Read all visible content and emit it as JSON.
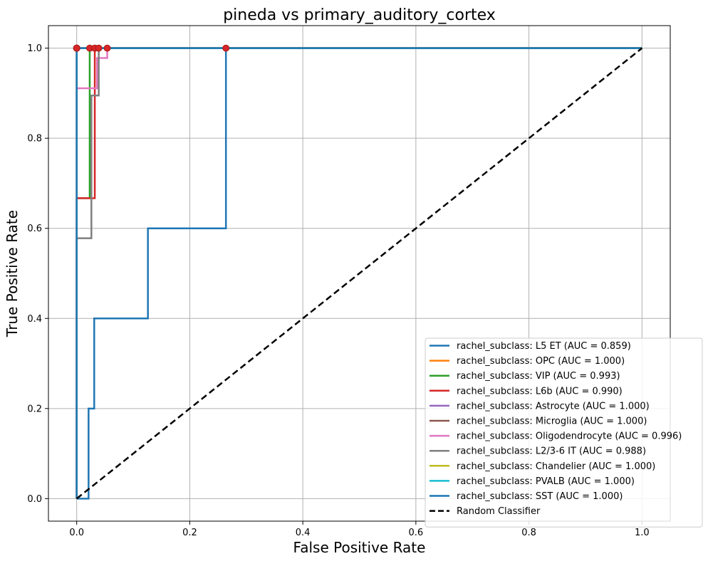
{
  "chart_data": {
    "type": "line",
    "title": "pineda vs primary_auditory_cortex",
    "xlabel": "False Positive Rate",
    "ylabel": "True Positive Rate",
    "xlim": [
      -0.05,
      1.05
    ],
    "ylim": [
      -0.05,
      1.05
    ],
    "xticks": [
      "0.0",
      "0.2",
      "0.4",
      "0.6",
      "0.8",
      "1.0"
    ],
    "yticks": [
      "0.0",
      "0.2",
      "0.4",
      "0.6",
      "0.8",
      "1.0"
    ],
    "grid": true,
    "legend_position": "lower-right",
    "series": [
      {
        "name": "rachel_subclass: L5 ET (AUC = 0.859)",
        "color": "#1f77b4",
        "x": [
          0,
          0.021,
          0.021,
          0.031,
          0.031,
          0.126,
          0.126,
          0.264,
          0.264,
          1.0
        ],
        "y": [
          0,
          0,
          0.2,
          0.2,
          0.4,
          0.4,
          0.6,
          0.6,
          1.0,
          1.0
        ],
        "marker": [
          0.264,
          1.0
        ]
      },
      {
        "name": "rachel_subclass: OPC (AUC = 1.000)",
        "color": "#ff7f0e",
        "x": [
          0,
          0,
          1.0
        ],
        "y": [
          0,
          1.0,
          1.0
        ],
        "marker": [
          0,
          1.0
        ]
      },
      {
        "name": "rachel_subclass: VIP (AUC = 0.993)",
        "color": "#2ca02c",
        "x": [
          0,
          0,
          0.023,
          0.023,
          1.0
        ],
        "y": [
          0,
          0.667,
          0.667,
          1.0,
          1.0
        ],
        "marker": [
          0.023,
          1.0
        ]
      },
      {
        "name": "rachel_subclass: L6b (AUC = 0.990)",
        "color": "#d62728",
        "x": [
          0,
          0,
          0.032,
          0.032,
          1.0
        ],
        "y": [
          0,
          0.667,
          0.667,
          1.0,
          1.0
        ],
        "marker": [
          0.032,
          1.0
        ]
      },
      {
        "name": "rachel_subclass: Astrocyte (AUC = 1.000)",
        "color": "#9467bd",
        "x": [
          0,
          0,
          1.0
        ],
        "y": [
          0,
          1.0,
          1.0
        ],
        "marker": [
          0,
          1.0
        ]
      },
      {
        "name": "rachel_subclass: Microglia (AUC = 1.000)",
        "color": "#8c564b",
        "x": [
          0,
          0,
          1.0
        ],
        "y": [
          0,
          1.0,
          1.0
        ],
        "marker": [
          0,
          1.0
        ]
      },
      {
        "name": "rachel_subclass: Oligodendrocyte (AUC = 0.996)",
        "color": "#e377c2",
        "x": [
          0,
          0,
          0.036,
          0.036,
          0.046,
          0.046,
          0.054,
          0.054,
          1.0
        ],
        "y": [
          0,
          0.911,
          0.911,
          0.978,
          0.978,
          0.978,
          0.978,
          1.0,
          1.0
        ],
        "marker": [
          0.054,
          1.0
        ]
      },
      {
        "name": "rachel_subclass: L2/3-6 IT (AUC = 0.988)",
        "color": "#7f7f7f",
        "x": [
          0,
          0,
          0.026,
          0.026,
          0.039,
          0.039,
          1.0
        ],
        "y": [
          0,
          0.578,
          0.578,
          0.895,
          0.895,
          1.0,
          1.0
        ],
        "marker": [
          0.039,
          1.0
        ]
      },
      {
        "name": "rachel_subclass: Chandelier (AUC = 1.000)",
        "color": "#bcbd22",
        "x": [
          0,
          0,
          1.0
        ],
        "y": [
          0,
          1.0,
          1.0
        ],
        "marker": [
          0,
          1.0
        ]
      },
      {
        "name": "rachel_subclass: PVALB (AUC = 1.000)",
        "color": "#17becf",
        "x": [
          0,
          0,
          1.0
        ],
        "y": [
          0,
          1.0,
          1.0
        ],
        "marker": [
          0,
          1.0
        ]
      },
      {
        "name": "rachel_subclass: SST (AUC = 1.000)",
        "color": "#1f77b4",
        "x": [
          0,
          0,
          1.0
        ],
        "y": [
          0,
          1.0,
          1.0
        ],
        "marker": [
          0,
          1.0
        ]
      }
    ],
    "reference_line": {
      "name": "Random Classifier",
      "color": "#000000",
      "style": "dashed",
      "x": [
        0,
        1
      ],
      "y": [
        0,
        1
      ]
    },
    "marker_color": "#d62728"
  }
}
